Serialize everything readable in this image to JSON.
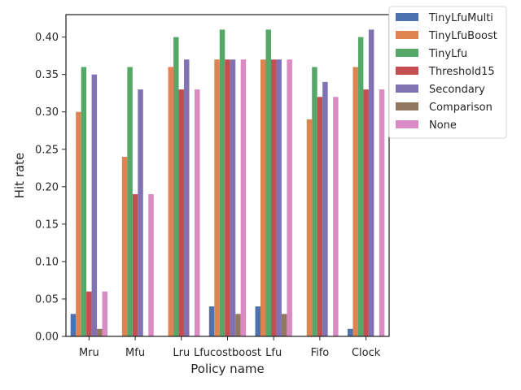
{
  "chart_data": {
    "type": "bar",
    "title": "",
    "xlabel": "Policy name",
    "ylabel": "Hit rate",
    "ylim": [
      0,
      0.43
    ],
    "yticks": [
      0.0,
      0.05,
      0.1,
      0.15,
      0.2,
      0.25,
      0.3,
      0.35,
      0.4
    ],
    "ytick_labels": [
      "0.00",
      "0.05",
      "0.10",
      "0.15",
      "0.20",
      "0.25",
      "0.30",
      "0.35",
      "0.40"
    ],
    "grid": false,
    "legend_position": "outside-top-right",
    "categories": [
      "Mru",
      "Mfu",
      "Lru",
      "Lfucostboost",
      "Lfu",
      "Fifo",
      "Clock"
    ],
    "series": [
      {
        "name": "TinyLfuMulti",
        "color": "#4c72b0",
        "values": [
          0.03,
          0.0,
          0.0,
          0.04,
          0.04,
          0.0,
          0.01
        ]
      },
      {
        "name": "TinyLfuBoost",
        "color": "#dd8452",
        "values": [
          0.3,
          0.24,
          0.36,
          0.37,
          0.37,
          0.29,
          0.36
        ]
      },
      {
        "name": "TinyLfu",
        "color": "#55a868",
        "values": [
          0.36,
          0.36,
          0.4,
          0.41,
          0.41,
          0.36,
          0.4
        ]
      },
      {
        "name": "Threshold15",
        "color": "#c44e52",
        "values": [
          0.06,
          0.19,
          0.33,
          0.37,
          0.37,
          0.32,
          0.33
        ]
      },
      {
        "name": "Secondary",
        "color": "#8172b3",
        "values": [
          0.35,
          0.33,
          0.37,
          0.37,
          0.37,
          0.34,
          0.41
        ]
      },
      {
        "name": "Comparison",
        "color": "#937860",
        "values": [
          0.01,
          0.0,
          0.0,
          0.03,
          0.03,
          0.0,
          0.0
        ]
      },
      {
        "name": "None",
        "color": "#da8bc3",
        "values": [
          0.06,
          0.19,
          0.33,
          0.37,
          0.37,
          0.32,
          0.33
        ]
      }
    ]
  }
}
